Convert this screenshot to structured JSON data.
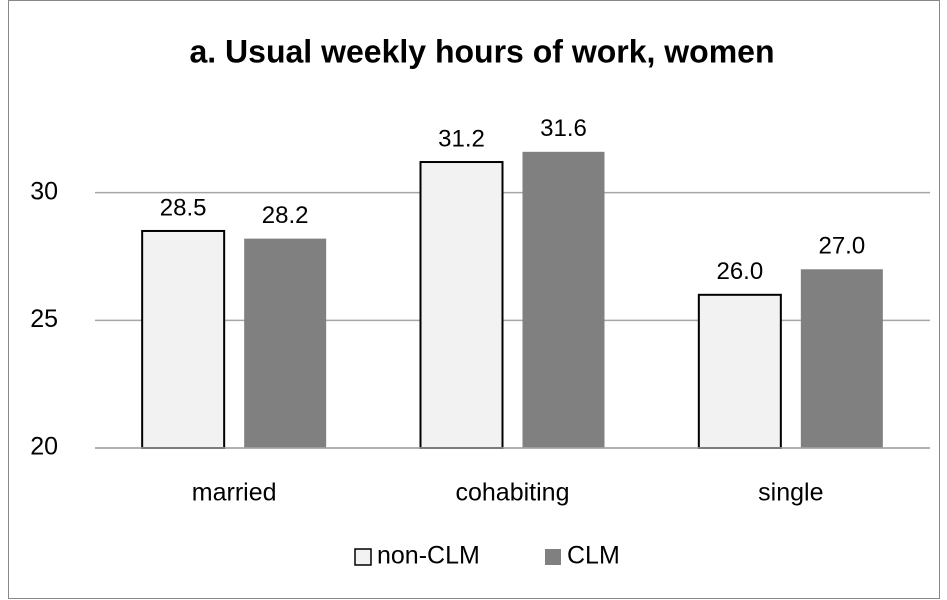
{
  "chart_data": {
    "type": "bar",
    "title": "a. Usual weekly hours of work, women",
    "categories": [
      "married",
      "cohabiting",
      "single"
    ],
    "series": [
      {
        "name": "non-CLM",
        "color": "#f2f2f2",
        "values": [
          28.5,
          31.2,
          26
        ],
        "value_labels": [
          "28.5",
          "31.2",
          "26.0"
        ]
      },
      {
        "name": "CLM",
        "color": "#808080",
        "values": [
          28.2,
          31.6,
          27
        ],
        "value_labels": [
          "28.2",
          "31.6",
          "27.0"
        ]
      }
    ],
    "ylim": [
      20,
      35
    ],
    "yticks": [
      20,
      25,
      30
    ],
    "grid": true,
    "legend": "bottom"
  }
}
